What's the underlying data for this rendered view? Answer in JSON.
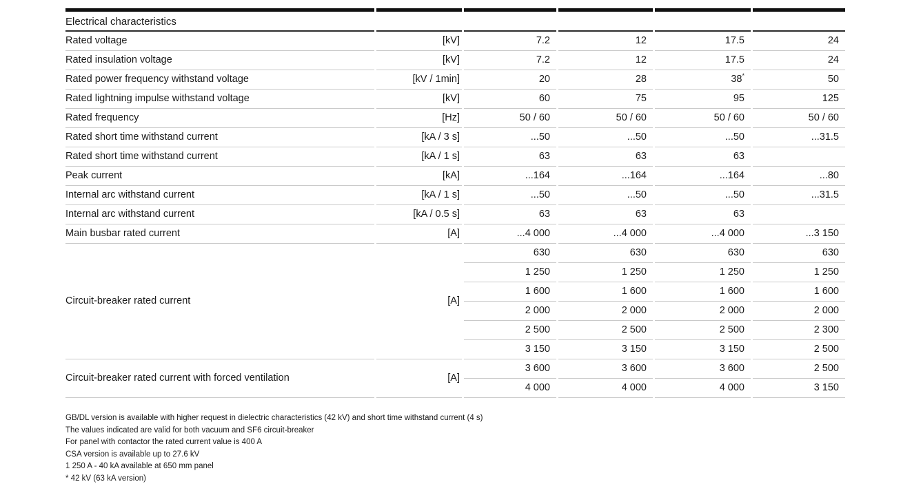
{
  "table": {
    "title": "Electrical characteristics",
    "rows": [
      {
        "label": "Rated voltage",
        "unit": "[kV]",
        "values": [
          "7.2",
          "12",
          "17.5",
          "24"
        ]
      },
      {
        "label": "Rated insulation voltage",
        "unit": "[kV]",
        "values": [
          "7.2",
          "12",
          "17.5",
          "24"
        ]
      },
      {
        "label": "Rated power frequency withstand voltage",
        "unit": "[kV / 1min]",
        "values": [
          "20",
          "28",
          "38",
          "50"
        ],
        "sup": "*"
      },
      {
        "label": "Rated lightning impulse withstand voltage",
        "unit": "[kV]",
        "values": [
          "60",
          "75",
          "95",
          "125"
        ]
      },
      {
        "label": "Rated frequency",
        "unit": "[Hz]",
        "values": [
          "50 / 60",
          "50 / 60",
          "50 / 60",
          "50 / 60"
        ]
      },
      {
        "label": "Rated short time withstand current",
        "unit": "[kA / 3 s]",
        "values": [
          "...50",
          "...50",
          "...50",
          "...31.5"
        ]
      },
      {
        "label": "Rated short time withstand current",
        "unit": "[kA / 1 s]",
        "values": [
          "63",
          "63",
          "63",
          ""
        ]
      },
      {
        "label": "Peak current",
        "unit": "[kA]",
        "values": [
          "...164",
          "...164",
          "...164",
          "...80"
        ]
      },
      {
        "label": "Internal arc withstand current",
        "unit": "[kA / 1 s]",
        "values": [
          "...50",
          "...50",
          "...50",
          "...31.5"
        ]
      },
      {
        "label": "Internal arc withstand current",
        "unit": "[kA / 0.5 s]",
        "values": [
          "63",
          "63",
          "63",
          ""
        ]
      },
      {
        "label": "Main busbar rated current",
        "unit": "[A]",
        "values": [
          "...4 000",
          "...4 000",
          "...4 000",
          "...3 150"
        ]
      }
    ],
    "groups": [
      {
        "label": "Circuit-breaker rated current",
        "unit": "[A]",
        "subrows": [
          [
            "630",
            "630",
            "630",
            "630"
          ],
          [
            "1 250",
            "1 250",
            "1 250",
            "1 250"
          ],
          [
            "1 600",
            "1 600",
            "1 600",
            "1 600"
          ],
          [
            "2 000",
            "2 000",
            "2 000",
            "2 000"
          ],
          [
            "2 500",
            "2 500",
            "2 500",
            "2 300"
          ],
          [
            "3 150",
            "3 150",
            "3 150",
            "2 500"
          ]
        ]
      },
      {
        "label": "Circuit-breaker rated current with forced ventilation",
        "unit": "[A]",
        "subrows": [
          [
            "3 600",
            "3 600",
            "3 600",
            "2 500"
          ],
          [
            "4 000",
            "4 000",
            "4 000",
            "3 150"
          ]
        ]
      }
    ]
  },
  "footnotes": [
    "GB/DL version is available with higher request in dielectric characteristics (42 kV) and short time withstand current (4 s)",
    "The values indicated are valid for both vacuum and SF6 circuit-breaker",
    "For panel with contactor the rated current value is 400 A",
    "CSA version is available up to 27.6 kV",
    "1 250 A - 40 kA available at 650 mm panel",
    "* 42 kV (63 kA version)"
  ],
  "colors": {
    "text": "#1b1b1b",
    "rule_light": "#c9c9c9",
    "rule_dark": "#111111",
    "background": "#ffffff"
  }
}
